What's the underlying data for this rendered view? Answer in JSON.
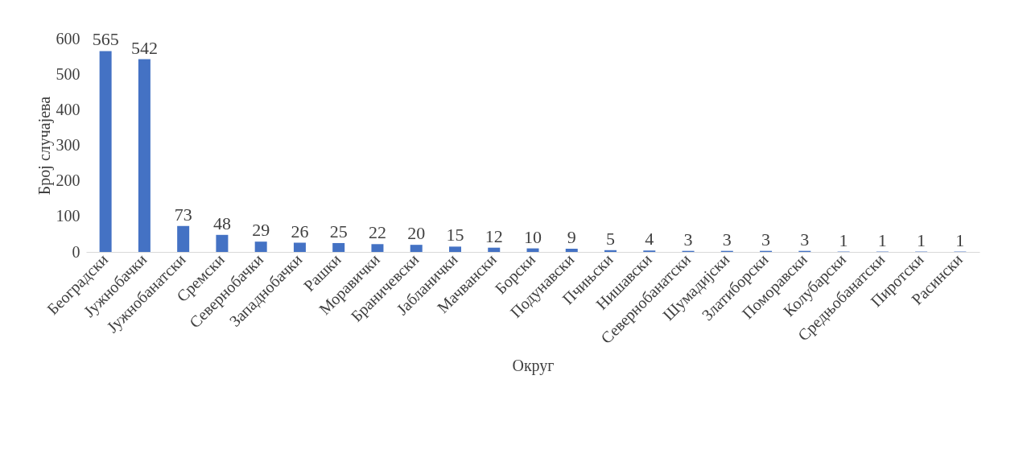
{
  "chart_data": {
    "type": "bar",
    "xlabel": "Округ",
    "ylabel": "Број случајева",
    "categories": [
      "Београдски",
      "Јужнобачки",
      "Јужнобанатски",
      "Сремски",
      "Севернобачки",
      "Западнобачки",
      "Рашки",
      "Моравички",
      "Браничевски",
      "Јабланички",
      "Мачвански",
      "Борски",
      "Подунавски",
      "Пчињски",
      "Нишавски",
      "Севернобанатски",
      "Шумадијски",
      "Златиборски",
      "Поморавски",
      "Колубарски",
      "Средњобанатски",
      "Пиротски",
      "Расински"
    ],
    "values": [
      565,
      542,
      73,
      48,
      29,
      26,
      25,
      22,
      20,
      15,
      12,
      10,
      9,
      5,
      4,
      3,
      3,
      3,
      3,
      1,
      1,
      1,
      1
    ],
    "color": "#4472c4",
    "ylim": [
      0,
      600
    ],
    "yticks": [
      0,
      100,
      200,
      300,
      400,
      500,
      600
    ],
    "grid": false,
    "data_labels": true
  }
}
